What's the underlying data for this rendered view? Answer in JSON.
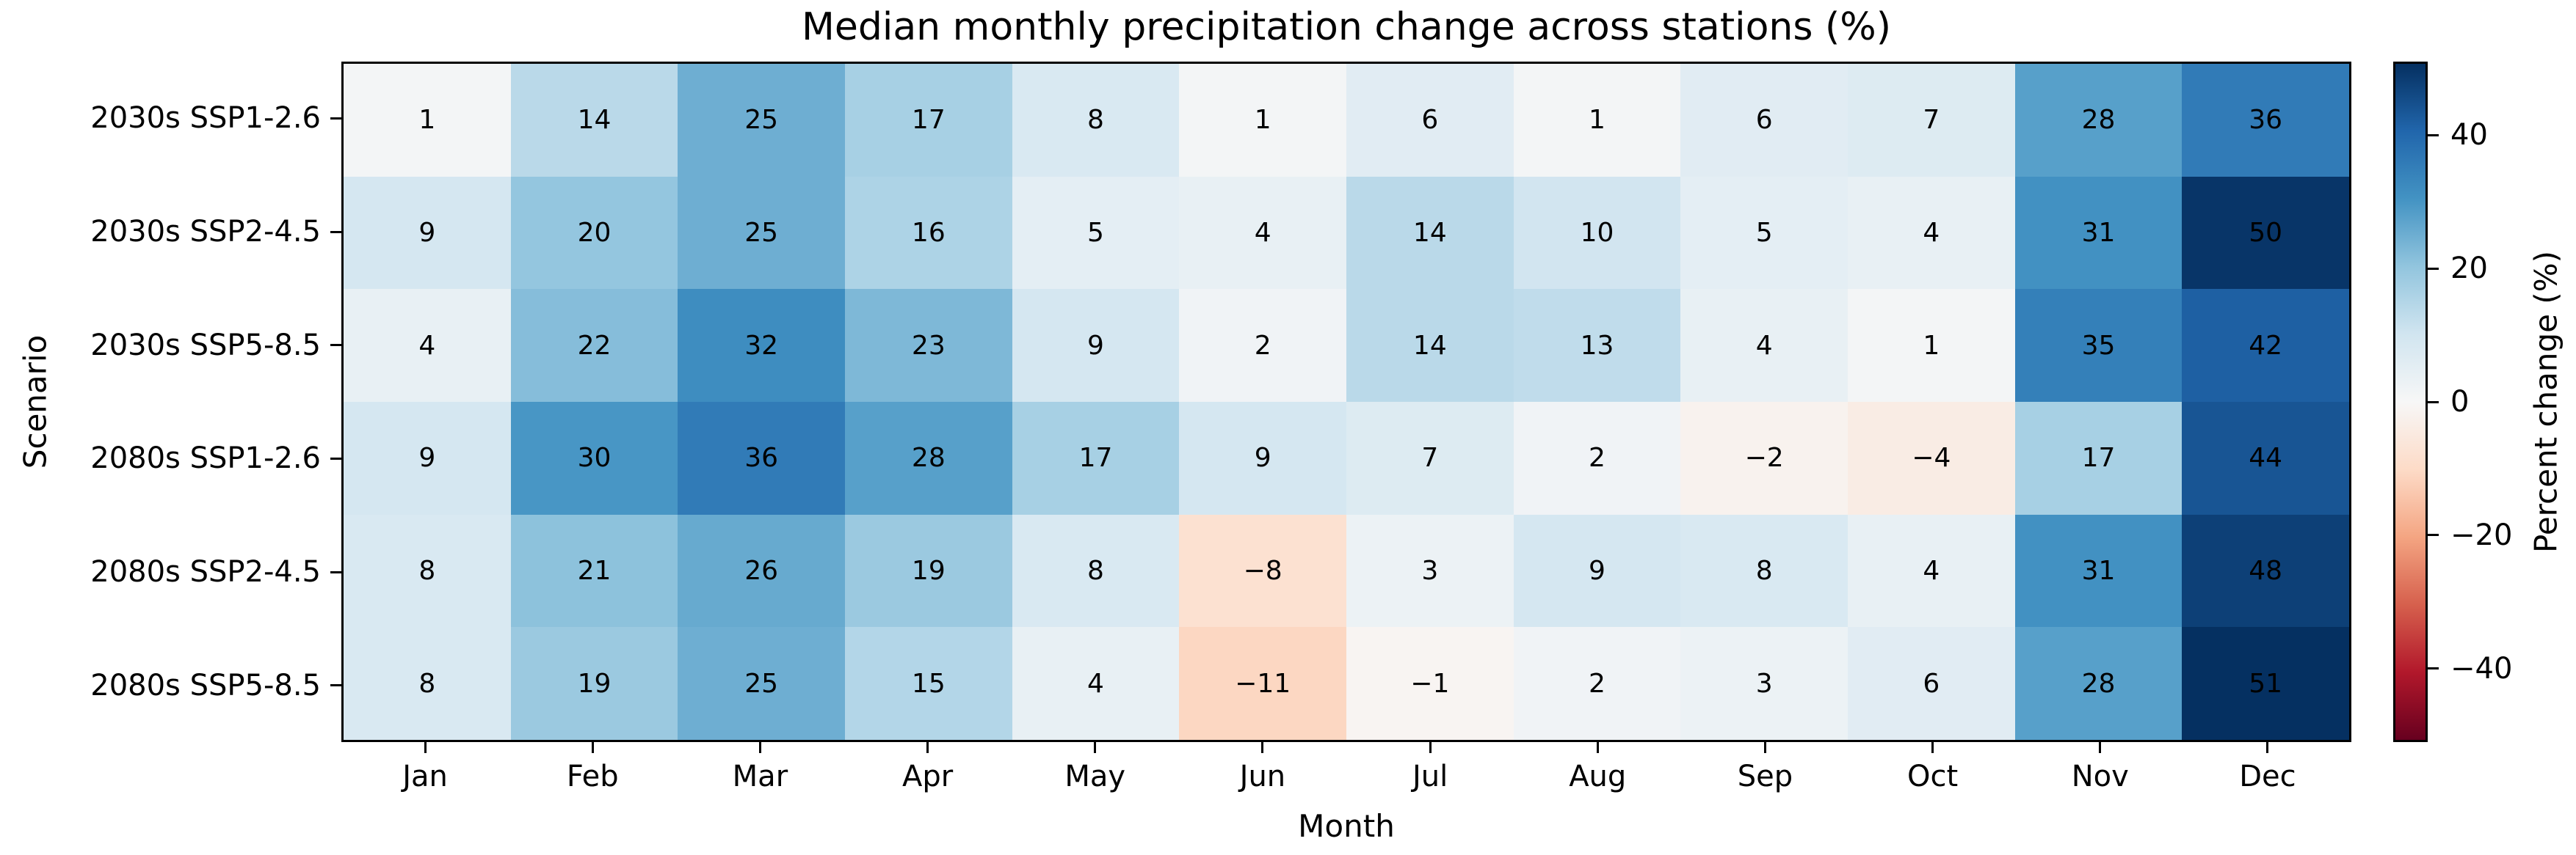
{
  "chart_data": {
    "type": "heatmap",
    "title": "Median monthly precipitation change across stations (%)",
    "xlabel": "Month",
    "ylabel": "Scenario",
    "colorbar_label": "Percent change (%)",
    "categories": [
      "Jan",
      "Feb",
      "Mar",
      "Apr",
      "May",
      "Jun",
      "Jul",
      "Aug",
      "Sep",
      "Oct",
      "Nov",
      "Dec"
    ],
    "scenarios": [
      "2030s SSP1-2.6",
      "2030s SSP2-4.5",
      "2030s SSP5-8.5",
      "2080s SSP1-2.6",
      "2080s SSP2-4.5",
      "2080s SSP5-8.5"
    ],
    "values": [
      [
        1,
        14,
        25,
        17,
        8,
        1,
        6,
        1,
        6,
        7,
        28,
        36
      ],
      [
        9,
        20,
        25,
        16,
        5,
        4,
        14,
        10,
        5,
        4,
        31,
        50
      ],
      [
        4,
        22,
        32,
        23,
        9,
        2,
        14,
        13,
        4,
        1,
        35,
        42
      ],
      [
        9,
        30,
        36,
        28,
        17,
        9,
        7,
        2,
        -2,
        -4,
        17,
        44
      ],
      [
        8,
        21,
        26,
        19,
        8,
        -8,
        3,
        9,
        8,
        4,
        31,
        48
      ],
      [
        8,
        19,
        25,
        15,
        4,
        -11,
        -1,
        2,
        3,
        6,
        28,
        51
      ]
    ],
    "vmin": -51,
    "vmax": 51,
    "colorbar_ticks": [
      40,
      20,
      0,
      -20,
      -40
    ],
    "colormap": "RdBu",
    "colormap_stops": [
      "#67001f",
      "#b2182b",
      "#d6604d",
      "#f4a582",
      "#fddbc7",
      "#f7f7f7",
      "#d1e5f0",
      "#92c5de",
      "#4393c3",
      "#2166ac",
      "#053061"
    ],
    "annotation_color": "#000000",
    "spine_color": "#000000",
    "grid": false,
    "legend_position": "right-colorbar"
  }
}
